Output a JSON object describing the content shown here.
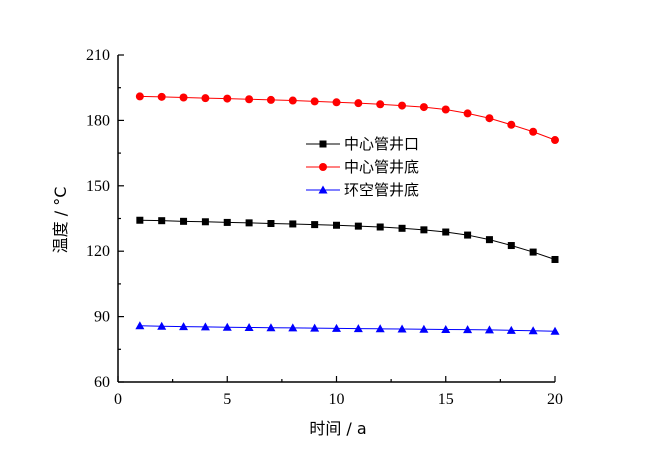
{
  "chart_data": {
    "type": "line",
    "xlabel": "时间 / a",
    "ylabel": "温度 / °C",
    "xlim": [
      0,
      20
    ],
    "ylim": [
      60,
      210
    ],
    "xticks": [
      0,
      5,
      10,
      15,
      20
    ],
    "yticks": [
      60,
      90,
      120,
      150,
      180,
      210
    ],
    "grid": false,
    "legend_position": "center-right",
    "x": [
      1,
      2,
      3,
      4,
      5,
      6,
      7,
      8,
      9,
      10,
      11,
      12,
      13,
      14,
      15,
      16,
      17,
      18,
      19,
      20
    ],
    "series": [
      {
        "name": "中心管井口",
        "color": "#000000",
        "marker": "square",
        "values": [
          134.2,
          134.0,
          133.7,
          133.5,
          133.2,
          133.0,
          132.7,
          132.5,
          132.2,
          131.9,
          131.5,
          131.1,
          130.5,
          129.8,
          128.8,
          127.4,
          125.3,
          122.6,
          119.6,
          116.2
        ]
      },
      {
        "name": "中心管井底",
        "color": "#ff0000",
        "marker": "circle",
        "values": [
          191.0,
          190.8,
          190.5,
          190.2,
          190.0,
          189.7,
          189.4,
          189.1,
          188.7,
          188.3,
          187.9,
          187.4,
          186.8,
          186.1,
          185.0,
          183.2,
          181.0,
          178.0,
          174.8,
          171.0
        ]
      },
      {
        "name": "环空管井底",
        "color": "#0000ff",
        "marker": "triangle",
        "values": [
          85.8,
          85.6,
          85.4,
          85.3,
          85.1,
          85.0,
          84.9,
          84.8,
          84.7,
          84.6,
          84.5,
          84.4,
          84.3,
          84.2,
          84.1,
          84.0,
          83.9,
          83.7,
          83.5,
          83.3
        ]
      }
    ]
  }
}
